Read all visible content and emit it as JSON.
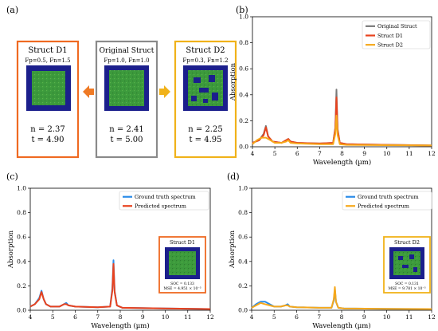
{
  "panels": {
    "a": {
      "label": "(a)"
    },
    "b": {
      "label": "(b)"
    },
    "c": {
      "label": "(c)"
    },
    "d": {
      "label": "(d)"
    }
  },
  "structs": {
    "d1": {
      "title": "Struct D1",
      "params": "Fp=0.5, Fn=1.5",
      "n_line": "n = 2.37",
      "t_line": "t = 4.90",
      "border": "#ef6a22"
    },
    "orig": {
      "title": "Original Struct",
      "params": "Fp=1.0, Fn=1.0",
      "n_line": "n = 2.41",
      "t_line": "t = 5.00",
      "border": "#8a8a8a"
    },
    "d2": {
      "title": "Struct D2",
      "params": "Fp=0.3, Fn=1.2",
      "n_line": "n = 2.25",
      "t_line": "t = 4.95",
      "border": "#f0b21a"
    }
  },
  "insets": {
    "c": {
      "title": "Struct D1",
      "soc": "SOC = 0.133",
      "mse": "MSE = 4.951 × 10⁻³"
    },
    "d": {
      "title": "Struct D2",
      "soc": "SOC = 0.131",
      "mse": "MSE = 9.781 × 10⁻³"
    }
  },
  "colors": {
    "original": "#7a7a7a",
    "d1": "#e8421e",
    "d2": "#f6a81b",
    "ground_truth": "#2b8ce8",
    "predicted_c": "#e8421e",
    "predicted_d": "#f6a81b",
    "arrow": "#ef7a25",
    "inset_field": "#1b1f8c",
    "inset_pattern": "#3c9a3c"
  },
  "chart_data": [
    {
      "panel": "b",
      "type": "line",
      "xlabel": "Wavelength (µm)",
      "ylabel": "Absorption",
      "xlim": [
        4,
        12
      ],
      "ylim": [
        0,
        1.0
      ],
      "xticks": [
        "4",
        "5",
        "6",
        "7",
        "8",
        "9",
        "10",
        "11",
        "12"
      ],
      "yticks": [
        "0.0",
        "0.2",
        "0.4",
        "0.6",
        "0.8",
        "1.0"
      ],
      "legend_position": "top-right",
      "series": [
        {
          "name": "Original Struct",
          "color_key": "original",
          "x": [
            4.0,
            4.3,
            4.5,
            4.6,
            4.7,
            4.9,
            5.3,
            5.5,
            5.6,
            5.7,
            6.0,
            7.0,
            7.6,
            7.7,
            7.75,
            7.8,
            7.9,
            8.2,
            10.0,
            12.0
          ],
          "y": [
            0.03,
            0.05,
            0.1,
            0.16,
            0.08,
            0.04,
            0.03,
            0.05,
            0.06,
            0.04,
            0.03,
            0.025,
            0.03,
            0.15,
            0.44,
            0.14,
            0.03,
            0.02,
            0.015,
            0.01
          ]
        },
        {
          "name": "Struct D1",
          "color_key": "d1",
          "x": [
            4.0,
            4.3,
            4.5,
            4.6,
            4.7,
            4.9,
            5.3,
            5.5,
            5.6,
            5.7,
            6.0,
            7.0,
            7.6,
            7.7,
            7.75,
            7.8,
            7.9,
            8.2,
            10.0,
            12.0
          ],
          "y": [
            0.03,
            0.05,
            0.09,
            0.15,
            0.08,
            0.04,
            0.03,
            0.05,
            0.06,
            0.04,
            0.03,
            0.025,
            0.03,
            0.14,
            0.38,
            0.13,
            0.03,
            0.02,
            0.015,
            0.01
          ]
        },
        {
          "name": "Struct D2",
          "color_key": "d2",
          "x": [
            4.0,
            4.2,
            4.4,
            4.6,
            4.8,
            5.0,
            5.3,
            5.5,
            5.6,
            5.7,
            6.0,
            7.0,
            7.6,
            7.7,
            7.75,
            7.8,
            7.9,
            8.2,
            10.0,
            12.0
          ],
          "y": [
            0.02,
            0.05,
            0.07,
            0.07,
            0.05,
            0.03,
            0.03,
            0.04,
            0.05,
            0.03,
            0.025,
            0.02,
            0.02,
            0.1,
            0.24,
            0.09,
            0.02,
            0.015,
            0.012,
            0.01
          ]
        }
      ]
    },
    {
      "panel": "c",
      "type": "line",
      "xlabel": "Wavelength (µm)",
      "ylabel": "Absorption",
      "xlim": [
        4,
        12
      ],
      "ylim": [
        0,
        1.0
      ],
      "xticks": [
        "4",
        "5",
        "6",
        "7",
        "8",
        "9",
        "10",
        "11",
        "12"
      ],
      "yticks": [
        "0.0",
        "0.2",
        "0.4",
        "0.6",
        "0.8",
        "1.0"
      ],
      "legend_position": "top-right",
      "series": [
        {
          "name": "Ground truth spectrum",
          "color_key": "ground_truth",
          "x": [
            4.0,
            4.2,
            4.4,
            4.5,
            4.6,
            4.7,
            4.9,
            5.3,
            5.5,
            5.6,
            5.7,
            6.0,
            7.0,
            7.55,
            7.65,
            7.7,
            7.75,
            7.85,
            8.1,
            10.0,
            12.0
          ],
          "y": [
            0.03,
            0.05,
            0.1,
            0.16,
            0.09,
            0.05,
            0.03,
            0.03,
            0.05,
            0.06,
            0.04,
            0.03,
            0.025,
            0.03,
            0.18,
            0.41,
            0.16,
            0.04,
            0.02,
            0.015,
            0.01
          ]
        },
        {
          "name": "Predicted spectrum",
          "color_key": "predicted_c",
          "x": [
            4.0,
            4.2,
            4.4,
            4.5,
            4.6,
            4.7,
            4.9,
            5.3,
            5.5,
            5.6,
            5.7,
            6.0,
            7.0,
            7.55,
            7.65,
            7.7,
            7.75,
            7.85,
            8.1,
            10.0,
            12.0
          ],
          "y": [
            0.03,
            0.05,
            0.09,
            0.15,
            0.09,
            0.05,
            0.03,
            0.03,
            0.05,
            0.05,
            0.04,
            0.03,
            0.025,
            0.03,
            0.16,
            0.38,
            0.15,
            0.04,
            0.02,
            0.015,
            0.01
          ]
        }
      ]
    },
    {
      "panel": "d",
      "type": "line",
      "xlabel": "Wavelength (µm)",
      "ylabel": "Absorption",
      "xlim": [
        4,
        12
      ],
      "ylim": [
        0,
        1.0
      ],
      "xticks": [
        "4",
        "5",
        "6",
        "7",
        "8",
        "9",
        "10",
        "11",
        "12"
      ],
      "yticks": [
        "0.0",
        "0.2",
        "0.4",
        "0.6",
        "0.8",
        "1.0"
      ],
      "legend_position": "top-right",
      "series": [
        {
          "name": "Ground truth spectrum",
          "color_key": "ground_truth",
          "x": [
            4.0,
            4.2,
            4.4,
            4.6,
            4.8,
            5.0,
            5.3,
            5.5,
            5.6,
            5.7,
            6.0,
            7.0,
            7.55,
            7.65,
            7.7,
            7.75,
            7.85,
            8.1,
            10.0,
            12.0
          ],
          "y": [
            0.02,
            0.05,
            0.07,
            0.07,
            0.05,
            0.03,
            0.03,
            0.04,
            0.05,
            0.03,
            0.025,
            0.02,
            0.02,
            0.08,
            0.17,
            0.07,
            0.02,
            0.015,
            0.012,
            0.01
          ]
        },
        {
          "name": "Predicted spectrum",
          "color_key": "predicted_d",
          "x": [
            4.0,
            4.2,
            4.4,
            4.6,
            4.8,
            5.0,
            5.3,
            5.5,
            5.6,
            5.7,
            6.0,
            7.0,
            7.55,
            7.65,
            7.7,
            7.75,
            7.85,
            8.1,
            10.0,
            12.0
          ],
          "y": [
            0.02,
            0.04,
            0.06,
            0.05,
            0.04,
            0.03,
            0.03,
            0.04,
            0.04,
            0.03,
            0.025,
            0.02,
            0.02,
            0.09,
            0.19,
            0.07,
            0.02,
            0.015,
            0.012,
            0.01
          ]
        }
      ]
    }
  ]
}
